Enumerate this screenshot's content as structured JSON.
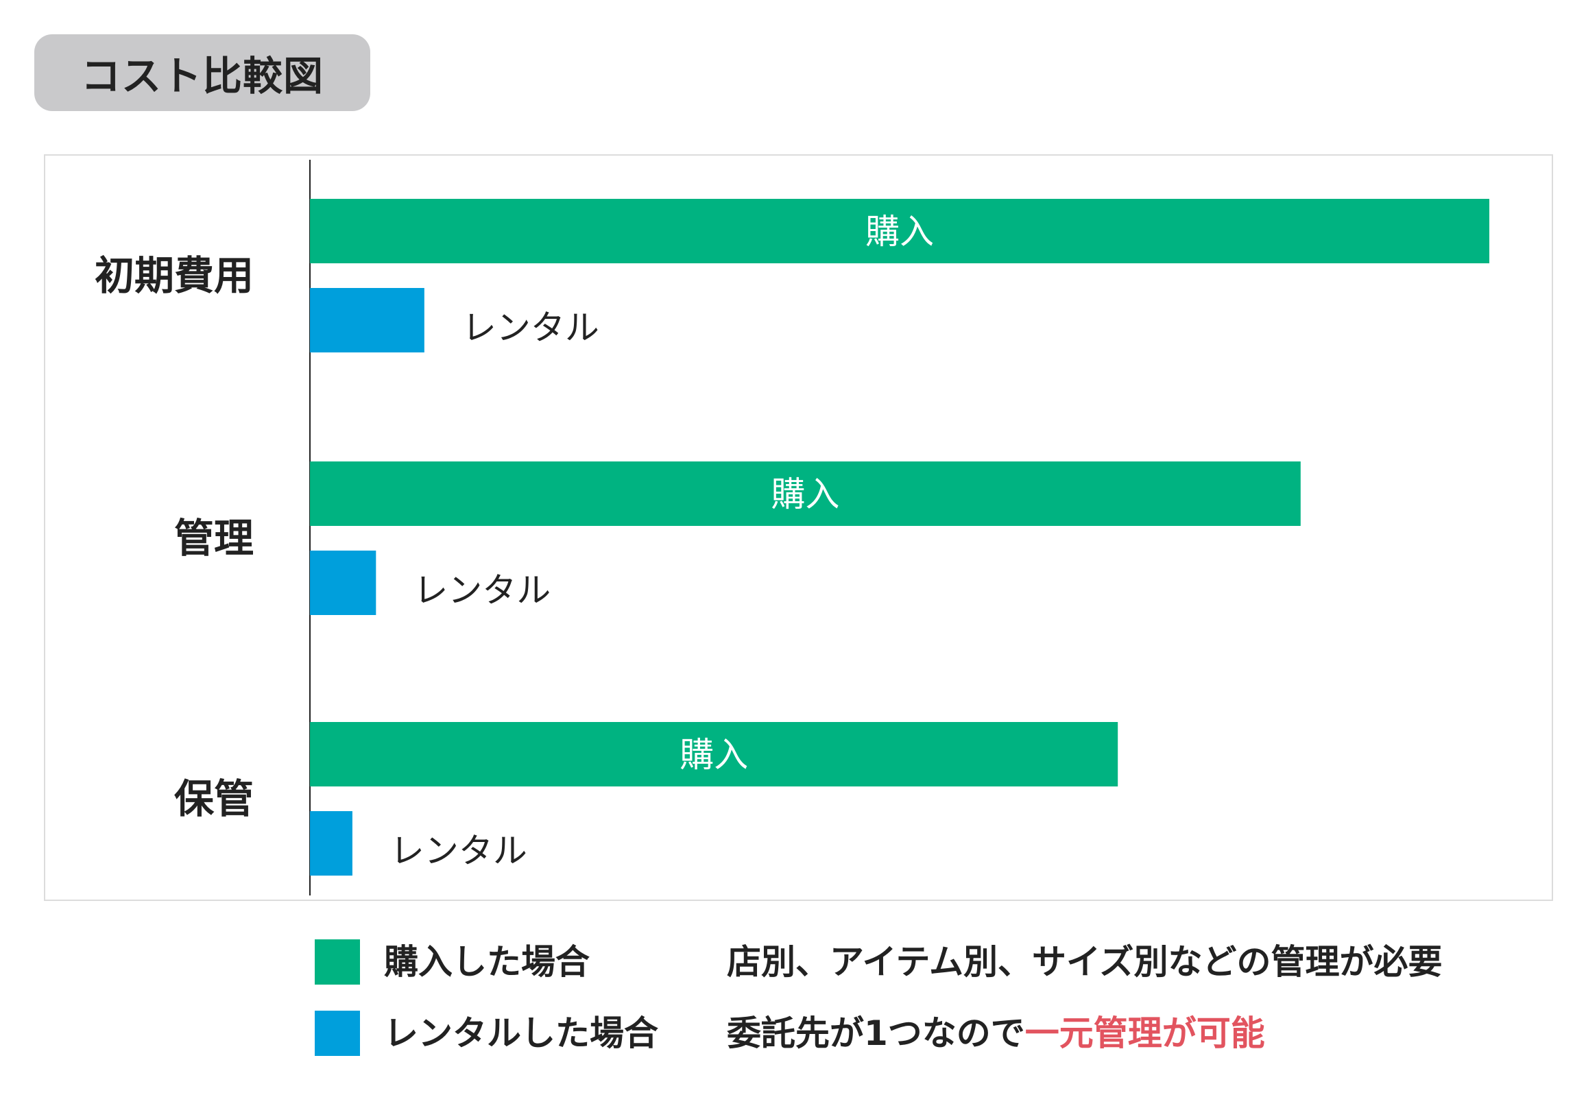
{
  "title": "コスト比較図",
  "chart_data": {
    "type": "bar",
    "orientation": "horizontal",
    "categories": [
      "初期費用",
      "管理",
      "保管"
    ],
    "series": [
      {
        "name": "購入",
        "color": "#00b381",
        "values": [
          100,
          84,
          68.5
        ],
        "bar_labels": [
          "購入",
          "購入",
          "購入"
        ]
      },
      {
        "name": "レンタル",
        "color": "#009fdc",
        "values": [
          9.7,
          5.6,
          3.6
        ],
        "bar_labels": [
          "レンタル",
          "レンタル",
          "レンタル"
        ]
      }
    ],
    "xlim": [
      0,
      100
    ],
    "grid": false,
    "axis_ticks": false
  },
  "legend": {
    "items": [
      {
        "color": "#00b381",
        "label": "購入した場合",
        "note": "店別、アイテム別、サイズ別などの管理が必要",
        "note_highlight": ""
      },
      {
        "color": "#009fdc",
        "label": "レンタルした場合",
        "note": "委託先が1つなので",
        "note_highlight": "一元管理が可能"
      }
    ],
    "highlight_color": "#e2545f"
  }
}
